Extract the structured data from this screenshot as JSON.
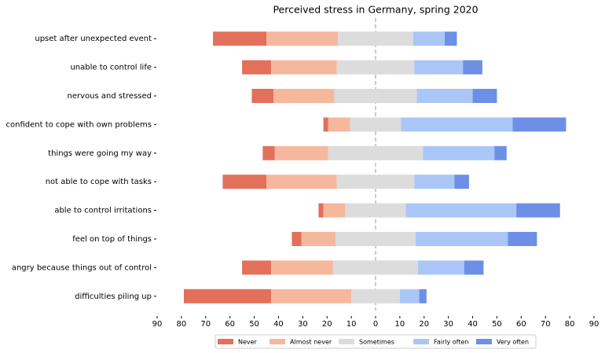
{
  "chart_data": {
    "type": "diverging-bar",
    "title": "Perceived stress in Germany, spring 2020",
    "categories": [
      "upset after unexpected event",
      "unable to control life",
      "nervous and stressed",
      "confident to cope with own problems",
      "things were going my way",
      "not able to cope with tasks",
      "able to control irritations",
      "feel on top of things",
      "angry because things out of control",
      "difficulties piling up"
    ],
    "series": [
      {
        "name": "Never",
        "color": "#e2705a",
        "values": [
          22,
          12,
          9,
          2,
          5,
          18,
          2,
          4,
          12,
          36
        ]
      },
      {
        "name": "Almost never",
        "color": "#f6b89d",
        "values": [
          29.5,
          27,
          25,
          9,
          22,
          29,
          9,
          14,
          25.5,
          33
        ]
      },
      {
        "name": "Sometimes",
        "color": "#dcdcdc",
        "values": [
          31,
          32,
          34,
          21,
          39,
          32,
          25,
          33,
          35,
          20
        ]
      },
      {
        "name": "Fairly often",
        "color": "#a9c6f7",
        "values": [
          13,
          20,
          23,
          46,
          29.5,
          16.5,
          45.5,
          38,
          19,
          8
        ]
      },
      {
        "name": "Very often",
        "color": "#6e8fe6",
        "values": [
          5,
          8,
          10,
          22,
          5,
          6,
          18,
          12,
          8,
          3
        ]
      }
    ],
    "xlim": [
      -90,
      90
    ],
    "xticks": [
      {
        "value": -90,
        "label": "90"
      },
      {
        "value": -80,
        "label": "80"
      },
      {
        "value": -70,
        "label": "70"
      },
      {
        "value": -60,
        "label": "60"
      },
      {
        "value": -50,
        "label": "50"
      },
      {
        "value": -40,
        "label": "40"
      },
      {
        "value": -30,
        "label": "30"
      },
      {
        "value": -20,
        "label": "20"
      },
      {
        "value": -10,
        "label": "10"
      },
      0,
      10,
      20,
      30,
      40,
      50,
      60,
      70,
      80,
      90
    ]
  }
}
